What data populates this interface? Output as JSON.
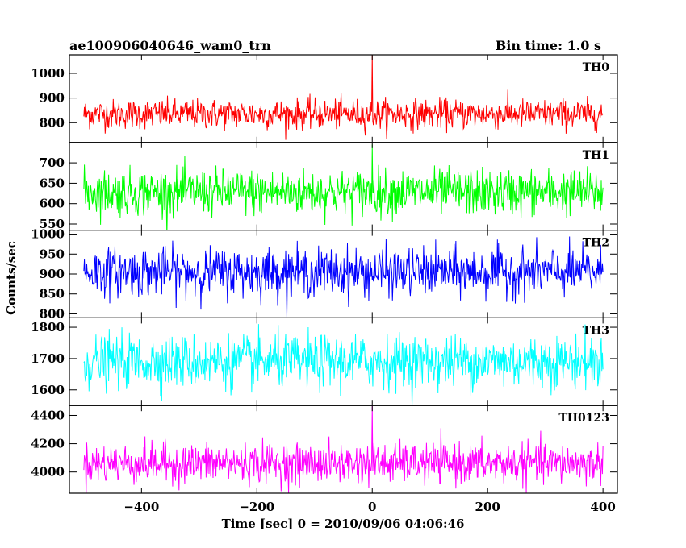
{
  "header": {
    "title": "ae100906040646_wam0_trn",
    "bin_time": "Bin time: 1.0 s"
  },
  "chart_data": {
    "type": "line",
    "title": "ae100906040646_wam0_trn",
    "xlabel": "Time [sec] 0 = 2010/09/06 04:06:46",
    "ylabel": "Counts/sec",
    "xlim": [
      -525,
      425
    ],
    "x_ticks": [
      -400,
      -200,
      0,
      200,
      400
    ],
    "x_tick_labels": [
      "−400",
      "−200",
      "0",
      "200",
      "400"
    ],
    "x_range": [
      -500,
      400
    ],
    "panels": [
      {
        "name": "TH0",
        "color": "#ff0000",
        "ylim": [
          720,
          1075
        ],
        "yticks": [
          800,
          900,
          1000
        ],
        "mean": 835,
        "noise_sd": 30,
        "spike": {
          "x": 0,
          "y": 1080
        }
      },
      {
        "name": "TH1",
        "color": "#00ff00",
        "ylim": [
          535,
          750
        ],
        "yticks": [
          550,
          600,
          650,
          700
        ],
        "mean": 628,
        "noise_sd": 28,
        "spike": {
          "x": 0,
          "y": 745
        }
      },
      {
        "name": "TH2",
        "color": "#0000ff",
        "ylim": [
          790,
          1010
        ],
        "yticks": [
          800,
          850,
          900,
          950,
          1000
        ],
        "mean": 905,
        "noise_sd": 30,
        "spike": null
      },
      {
        "name": "TH3",
        "color": "#00ffff",
        "ylim": [
          1550,
          1830
        ],
        "yticks": [
          1600,
          1700,
          1800
        ],
        "mean": 1690,
        "noise_sd": 42,
        "spike": null
      },
      {
        "name": "TH0123",
        "color": "#ff00ff",
        "ylim": [
          3850,
          4470
        ],
        "yticks": [
          4000,
          4200,
          4400
        ],
        "mean": 4060,
        "noise_sd": 70,
        "spike": {
          "x": 0,
          "y": 4470
        }
      }
    ]
  }
}
